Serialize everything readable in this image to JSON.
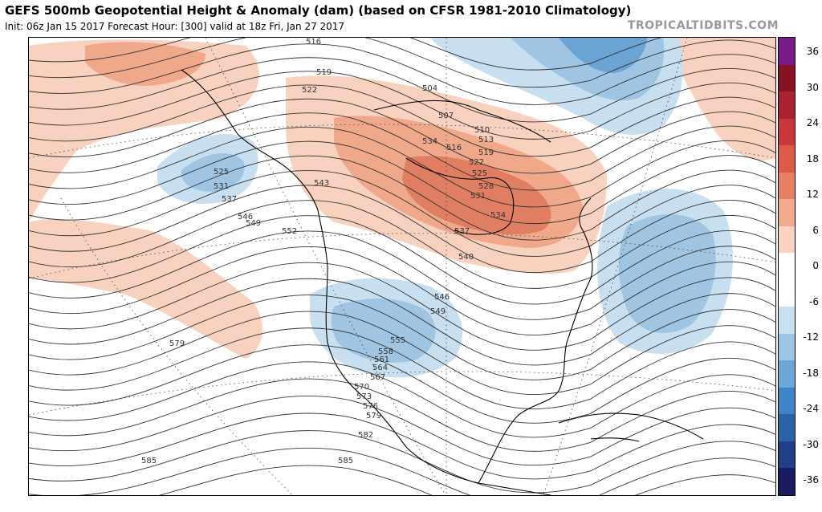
{
  "header": {
    "title": "GEFS 500mb Geopotential Height & Anomaly (dam) (based on CFSR 1981-2010 Climatology)",
    "subtitle": "Init: 06z Jan 15 2017   Forecast Hour: [300]   valid at 18z Fri, Jan 27 2017",
    "brand": "TROPICALTIDBITS.COM"
  },
  "colorbar": {
    "labels": [
      "36",
      "30",
      "24",
      "18",
      "12",
      "6",
      "0",
      "-6",
      "-12",
      "-18",
      "-24",
      "-30",
      "-36"
    ],
    "colors": [
      "#1a1a5e",
      "#1f3f86",
      "#2a62a8",
      "#3d85c6",
      "#6aa6d6",
      "#9dc6e6",
      "#c9e0f0",
      "#ffffff",
      "#ffffff",
      "#fbd3c0",
      "#f2a98c",
      "#e88063",
      "#db5b45",
      "#c8383a",
      "#a8222f",
      "#861222",
      "#7a1a88"
    ]
  },
  "map": {
    "colors": {
      "positive_light": "#f9d2bf",
      "positive_mid": "#f0a88a",
      "positive_strong": "#e07e62",
      "negative_light": "#c8dff0",
      "negative_mid": "#9fc5e3",
      "negative_strong": "#6aa3d4",
      "contour": "#333333"
    },
    "contour_labels": [
      "516",
      "519",
      "522",
      "504",
      "507",
      "510",
      "513",
      "516",
      "519",
      "522",
      "525",
      "528",
      "531",
      "534",
      "537",
      "540",
      "534",
      "543",
      "525",
      "531",
      "537",
      "546",
      "549",
      "552",
      "546",
      "549",
      "555",
      "558",
      "561",
      "564",
      "567",
      "570",
      "573",
      "576",
      "579",
      "582",
      "585",
      "585",
      "579"
    ]
  }
}
